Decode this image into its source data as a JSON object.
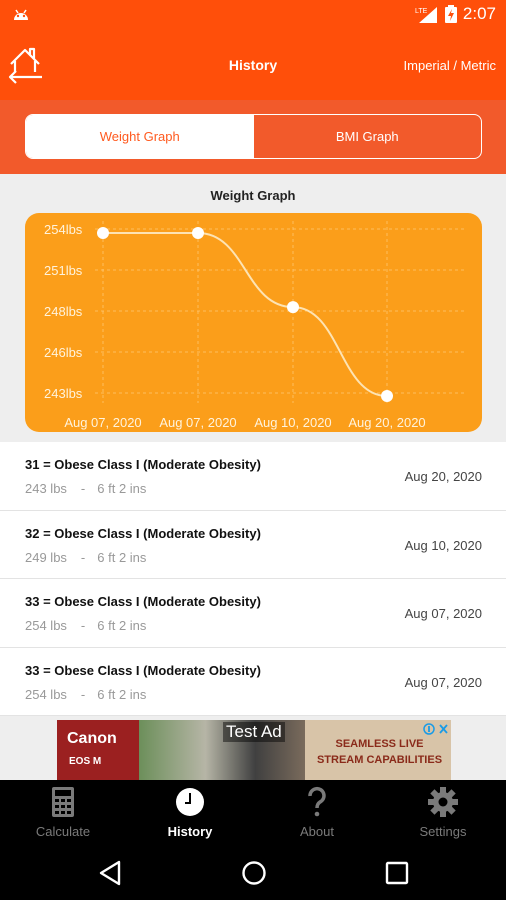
{
  "status": {
    "time": "2:07",
    "network": "LTE"
  },
  "header": {
    "title": "History",
    "units_toggle": "Imperial / Metric"
  },
  "tabs": {
    "weight": "Weight Graph",
    "bmi": "BMI Graph",
    "active": "weight"
  },
  "graph_heading": "Weight Graph",
  "chart_data": {
    "type": "line",
    "x": [
      "Aug 07, 2020",
      "Aug 07, 2020",
      "Aug 10, 2020",
      "Aug 20, 2020"
    ],
    "values": [
      254,
      254,
      249,
      243
    ],
    "y_ticks": [
      "254lbs",
      "251lbs",
      "248lbs",
      "246lbs",
      "243lbs"
    ],
    "ylim": [
      243,
      254
    ],
    "colors": {
      "background": "#fb9e1a",
      "line": "#fde3b3",
      "point": "#ffffff",
      "label": "#fff3dc"
    }
  },
  "history": [
    {
      "classification": "31 = Obese Class I (Moderate Obesity)",
      "weight": "243 lbs",
      "separator": "-",
      "height": "6 ft 2 ins",
      "date": "Aug 20, 2020"
    },
    {
      "classification": "32 = Obese Class I (Moderate Obesity)",
      "weight": "249 lbs",
      "separator": "-",
      "height": "6 ft 2 ins",
      "date": "Aug 10, 2020"
    },
    {
      "classification": "33 = Obese Class I (Moderate Obesity)",
      "weight": "254 lbs",
      "separator": "-",
      "height": "6 ft 2 ins",
      "date": "Aug 07, 2020"
    },
    {
      "classification": "33 = Obese Class I (Moderate Obesity)",
      "weight": "254 lbs",
      "separator": "-",
      "height": "6 ft 2 ins",
      "date": "Aug 07, 2020"
    }
  ],
  "ad": {
    "brand": "Canon",
    "model": "EOS M",
    "label": "Test Ad",
    "copy_line1": "SEAMLESS LIVE",
    "copy_line2": "STREAM CAPABILITIES"
  },
  "nav": {
    "calculate": "Calculate",
    "history": "History",
    "about": "About",
    "settings": "Settings",
    "active": "history"
  }
}
